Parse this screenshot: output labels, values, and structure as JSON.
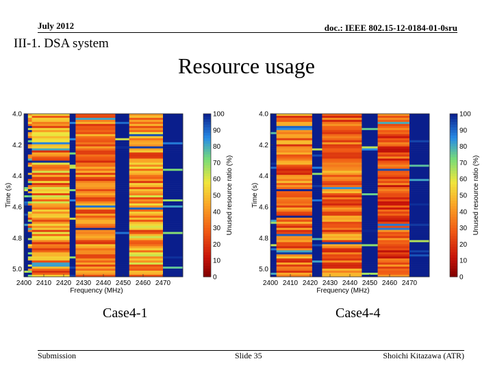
{
  "header": {
    "date": "July 2012",
    "doc": "doc.: IEEE 802.15-12-0184-01-0sru"
  },
  "section_title": "III-1. DSA system",
  "slide_title": "Resource usage",
  "footer": {
    "left": "Submission",
    "center": "Slide 35",
    "right": "Shoichi Kitazawa (ATR)"
  },
  "colors": {
    "dark_blue": "#0a1e8c",
    "red": "#c81e0a",
    "orange": "#f06414",
    "yellow": "#f0c832"
  },
  "chart_data": [
    {
      "type": "heatmap",
      "caption": "Case4-1",
      "xlabel": "Frequency (MHz)",
      "ylabel": "Time (s)",
      "colorbar_label": "Unused resource ratio (%)",
      "xticks": [
        2400,
        2410,
        2420,
        2430,
        2440,
        2450,
        2460,
        2470
      ],
      "yticks": [
        4.0,
        4.2,
        4.4,
        4.6,
        4.8,
        5.0
      ],
      "cbar_ticks": [
        0,
        10,
        20,
        30,
        40,
        50,
        60,
        70,
        80,
        90,
        100
      ],
      "xlim": [
        2400,
        2480
      ],
      "ylim": [
        4.0,
        5.05
      ],
      "clim": [
        0,
        100
      ],
      "bands": [
        {
          "from": 2400,
          "to": 2402,
          "level": "high"
        },
        {
          "from": 2402,
          "to": 2404,
          "level": "mixed"
        },
        {
          "from": 2404,
          "to": 2423,
          "level": "mid-high"
        },
        {
          "from": 2423,
          "to": 2426,
          "level": "high"
        },
        {
          "from": 2426,
          "to": 2446,
          "level": "mid"
        },
        {
          "from": 2446,
          "to": 2453,
          "level": "high"
        },
        {
          "from": 2453,
          "to": 2470,
          "level": "mid-high"
        },
        {
          "from": 2470,
          "to": 2480,
          "level": "high"
        }
      ]
    },
    {
      "type": "heatmap",
      "caption": "Case4-4",
      "xlabel": "Frequency (MHz)",
      "ylabel": "Time (s)",
      "colorbar_label": "Unused resource ratio (%)",
      "xticks": [
        2400,
        2410,
        2420,
        2430,
        2440,
        2450,
        2460,
        2470
      ],
      "yticks": [
        4.0,
        4.2,
        4.4,
        4.6,
        4.8,
        5.0
      ],
      "cbar_ticks": [
        0,
        10,
        20,
        30,
        40,
        50,
        60,
        70,
        80,
        90,
        100
      ],
      "xlim": [
        2400,
        2480
      ],
      "ylim": [
        4.0,
        5.05
      ],
      "clim": [
        0,
        100
      ],
      "bands": [
        {
          "from": 2400,
          "to": 2403,
          "level": "high"
        },
        {
          "from": 2403,
          "to": 2421,
          "level": "mid"
        },
        {
          "from": 2421,
          "to": 2426,
          "level": "high"
        },
        {
          "from": 2426,
          "to": 2446,
          "level": "mid"
        },
        {
          "from": 2446,
          "to": 2454,
          "level": "high"
        },
        {
          "from": 2454,
          "to": 2470,
          "level": "mid-low"
        },
        {
          "from": 2470,
          "to": 2480,
          "level": "high"
        }
      ]
    }
  ]
}
